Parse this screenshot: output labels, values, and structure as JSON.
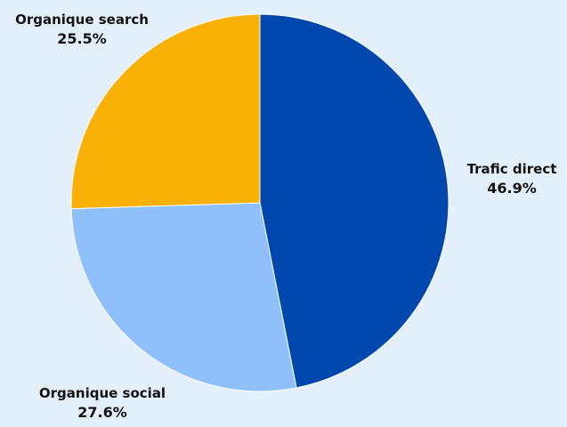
{
  "chart_data": {
    "type": "pie",
    "title": "",
    "start_angle_deg": 0,
    "direction": "clockwise",
    "slices": [
      {
        "label": "Trafic direct",
        "value": 46.9,
        "value_label": "46.9%",
        "color": "#0048ad"
      },
      {
        "label": "Organique social",
        "value": 27.6,
        "value_label": "27.6%",
        "color": "#8fc0fb"
      },
      {
        "label": "Organique search",
        "value": 25.5,
        "value_label": "25.5%",
        "color": "#f9b107"
      }
    ]
  },
  "colors": {
    "background": "#e3f0fb",
    "slice_border": "#ffffff"
  }
}
